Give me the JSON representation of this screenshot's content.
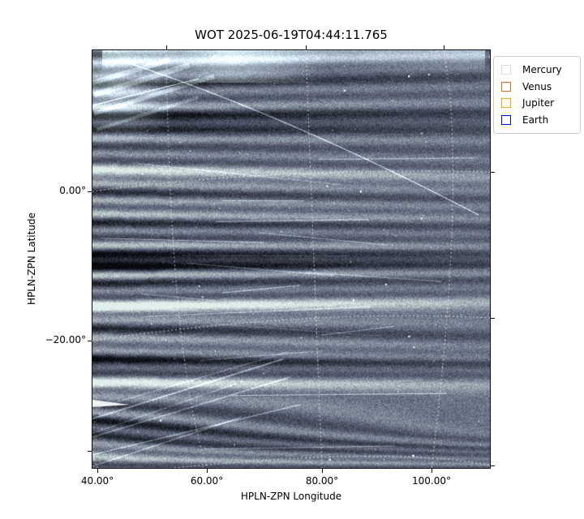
{
  "figure": {
    "title": "WOT 2025-06-19T04:44:11.765",
    "background_color": "#ffffff"
  },
  "axes": {
    "xlabel": "HPLN-ZPN Longitude",
    "ylabel": "HPLN-ZPN Latitude",
    "x_tick_labels": [
      "40.00°",
      "60.00°",
      "80.00°",
      "100.00°"
    ],
    "y_tick_labels": [
      "0.00°",
      "−20.00°"
    ]
  },
  "legend": {
    "items": [
      {
        "label": "Mercury",
        "color": "#dcdcdc"
      },
      {
        "label": "Venus",
        "color": "#d2691e"
      },
      {
        "label": "Jupiter",
        "color": "#ffa500"
      },
      {
        "label": "Earth",
        "color": "#0000ff"
      }
    ],
    "border_color": "#cccccc"
  },
  "chart_data": {
    "type": "heatmap",
    "title": "WOT 2025-06-19T04:44:11.765",
    "xlabel": "HPLN-ZPN Longitude",
    "ylabel": "HPLN-ZPN Latitude",
    "x_ticks_deg": [
      40,
      60,
      80,
      100
    ],
    "y_ticks_deg": [
      0,
      -20
    ],
    "x_range_deg_approx": [
      38,
      112
    ],
    "y_range_deg_approx": [
      -36,
      12
    ],
    "grid": {
      "style": "white dotted curved WCS graticule",
      "longitude_lines_deg": [
        40,
        60,
        80,
        100
      ],
      "latitude_lines_deg": [
        0,
        -20,
        -30
      ]
    },
    "legend_entries": [
      "Mercury",
      "Venus",
      "Jupiter",
      "Earth"
    ],
    "image_palette": {
      "dark": "#06080e",
      "mid": "#646c80",
      "bright": "#e1f0ec"
    },
    "image_description": "Noisy slate-blue heliospheric imager frame with near-horizontal bright and dark streamer bands, high contrast fanning from the left edge, bright wisps in the top-left corner, a faint diagonal satellite trail from upper-left to mid-right, a small solid white streak at the left edge near the bottom, and scattered point-like stars."
  }
}
